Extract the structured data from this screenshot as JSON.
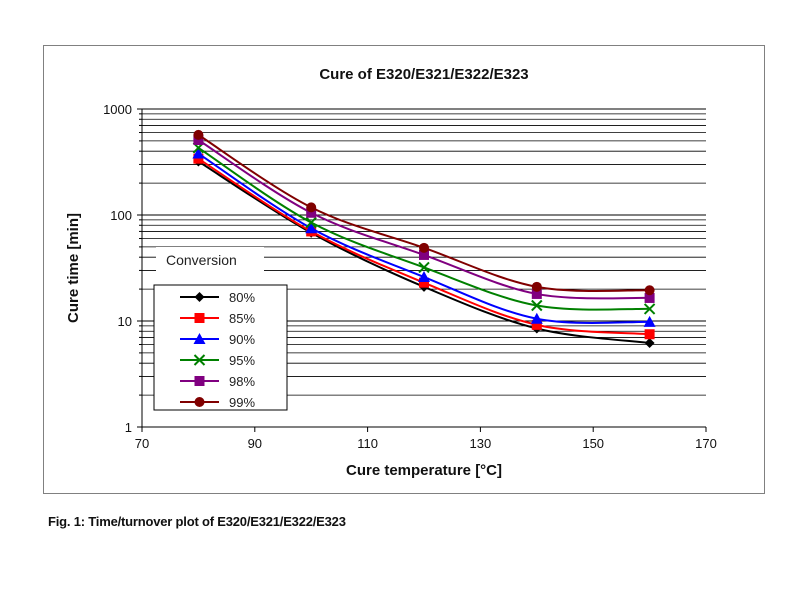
{
  "figure": {
    "caption": "Fig. 1: Time/turnover plot of E320/E321/E322/E323"
  },
  "chart_data": {
    "type": "line",
    "title": "Cure of E320/E321/E322/E323",
    "xlabel": "Cure temperature [°C]",
    "ylabel": "Cure time [min]",
    "x_scale": "linear",
    "y_scale": "log",
    "xlim": [
      70,
      170
    ],
    "ylim": [
      1,
      1000
    ],
    "x_ticks": [
      70,
      90,
      110,
      130,
      150,
      170
    ],
    "y_ticks": [
      1,
      10,
      100,
      1000
    ],
    "grid": "horizontal",
    "legend_title": "Conversion",
    "legend_position": "left",
    "x": [
      80,
      100,
      120,
      140,
      160
    ],
    "series": [
      {
        "name": "80%",
        "color": "#000000",
        "marker": "diamond",
        "values": [
          320,
          68,
          21,
          8.5,
          6.2
        ]
      },
      {
        "name": "85%",
        "color": "#ff0000",
        "marker": "square",
        "values": [
          340,
          70,
          23,
          9.2,
          7.5
        ]
      },
      {
        "name": "90%",
        "color": "#0000ff",
        "marker": "triangle",
        "values": [
          380,
          75,
          26,
          10.5,
          9.8
        ]
      },
      {
        "name": "95%",
        "color": "#008000",
        "marker": "x",
        "values": [
          430,
          85,
          32,
          14,
          13
        ]
      },
      {
        "name": "98%",
        "color": "#800080",
        "marker": "square",
        "values": [
          510,
          105,
          42,
          18,
          16.5
        ]
      },
      {
        "name": "99%",
        "color": "#800000",
        "marker": "circle",
        "values": [
          570,
          118,
          49,
          21,
          19.5
        ]
      }
    ]
  }
}
